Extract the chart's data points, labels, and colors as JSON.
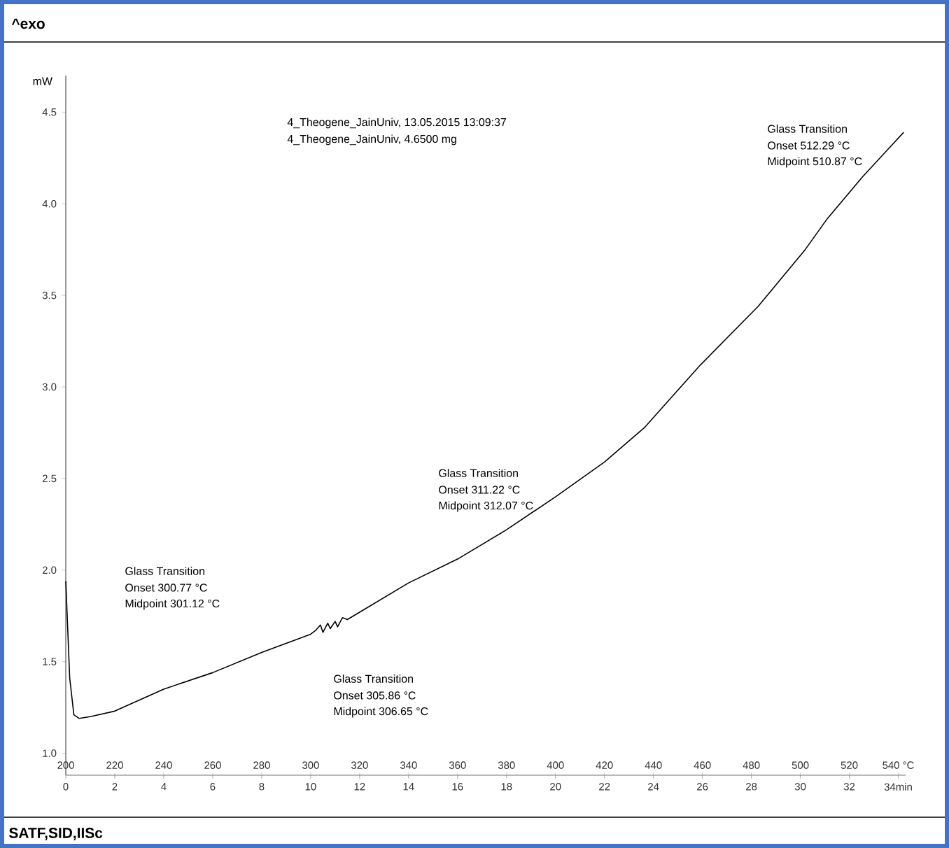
{
  "chart_data": {
    "type": "line",
    "ylabel": "mW",
    "x": [
      200,
      201.6,
      203.3,
      205.5,
      210,
      220,
      240,
      260,
      280,
      300,
      302,
      304,
      305,
      307,
      308,
      310,
      311,
      313,
      315,
      320,
      340,
      360,
      380,
      400,
      420,
      436.5,
      459.2,
      482.8,
      502,
      511.1,
      525.6,
      542.2
    ],
    "series": [
      {
        "color": "#000000",
        "values": [
          1.94,
          1.41,
          1.21,
          1.19,
          1.2,
          1.23,
          1.35,
          1.44,
          1.55,
          1.65,
          1.67,
          1.7,
          1.66,
          1.71,
          1.68,
          1.72,
          1.69,
          1.74,
          1.73,
          1.77,
          1.93,
          2.06,
          2.22,
          2.4,
          2.59,
          2.78,
          3.12,
          3.44,
          3.75,
          3.92,
          4.15,
          4.39
        ]
      }
    ],
    "xlim": [
      200,
      543
    ],
    "xticks": [
      200,
      220,
      240,
      260,
      280,
      300,
      320,
      340,
      360,
      380,
      400,
      420,
      440,
      460,
      480,
      500,
      520,
      {
        "value": 540,
        "label": "540 °C"
      }
    ],
    "x2lim": [
      0,
      34.3
    ],
    "x2ticks": [
      0,
      2,
      4,
      6,
      8,
      10,
      12,
      14,
      16,
      18,
      20,
      22,
      24,
      26,
      28,
      30,
      32,
      {
        "value": 34,
        "label": "34min"
      }
    ],
    "ylim": [
      0.88,
      4.7
    ],
    "yticks": [
      {
        "value": 1.0,
        "label": "1.0"
      },
      {
        "value": 1.5,
        "label": "1.5"
      },
      {
        "value": 2.0,
        "label": "2.0"
      },
      {
        "value": 2.5,
        "label": "2.5"
      },
      {
        "value": 3.0,
        "label": "3.0"
      },
      {
        "value": 3.5,
        "label": "3.5"
      },
      {
        "value": 4.0,
        "label": "4.0"
      },
      {
        "value": 4.5,
        "label": "4.5"
      }
    ],
    "annotations": [
      "^exo",
      "4_Theogene_JainUniv, 13.05.2015 13:09:37",
      "4_Theogene_JainUniv, 4.6500 mg",
      "Glass Transition",
      "Onset 512.29 °C",
      "Midpoint 510.87 °C",
      "Glass Transition",
      "Onset 311.22 °C",
      "Midpoint 312.07 °C",
      "Glass Transition",
      "Onset 300.77 °C",
      "Midpoint 301.12 °C",
      "Glass Transition",
      "Onset 305.86 °C",
      "Midpoint 306.65 °C",
      "SATF,SID,IISc"
    ]
  }
}
